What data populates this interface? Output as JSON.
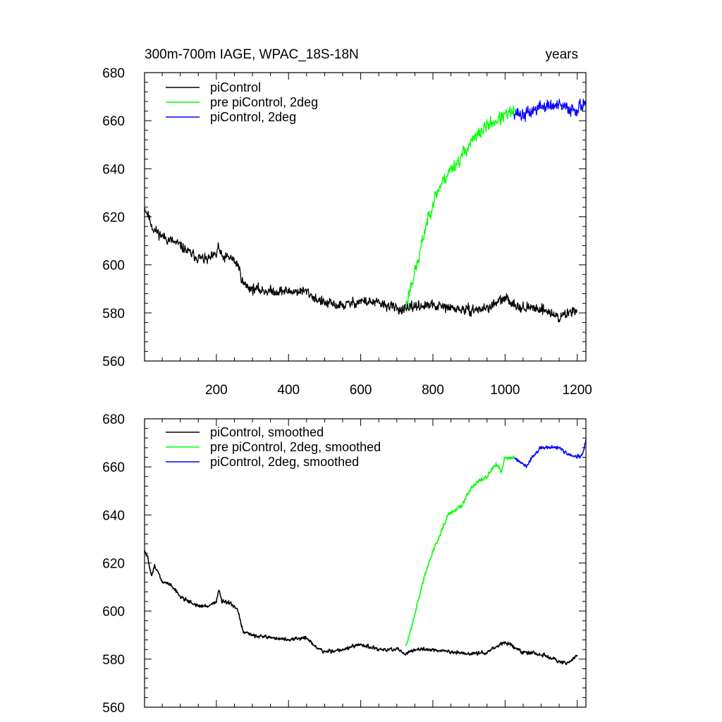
{
  "colors": {
    "picontrol": "#000000",
    "pre_picontrol_2deg": "#00ff00",
    "picontrol_2deg": "#0000ff",
    "axis": "#000000",
    "background": "#ffffff"
  },
  "chart_data": [
    {
      "type": "line",
      "title": "300m-700m IAGE, WPAC_18S-18N",
      "right_title": "years",
      "xlabel": "",
      "ylabel": "",
      "xlim": [
        1,
        1224
      ],
      "ylim": [
        560,
        680
      ],
      "x_ticks": [
        200,
        400,
        600,
        800,
        1000,
        1200
      ],
      "x_tick_labels": [
        "200",
        "400",
        "600",
        "800",
        "1000",
        "1200"
      ],
      "y_ticks": [
        560,
        580,
        600,
        620,
        640,
        660,
        680
      ],
      "y_tick_labels": [
        "560",
        "580",
        "600",
        "620",
        "640",
        "660",
        "680"
      ],
      "legend_position": "top-left",
      "series": [
        {
          "name": "piControl",
          "color": "#000000",
          "noise": 4.5,
          "seed": 11,
          "points": [
            [
              1,
              624
            ],
            [
              10,
              621
            ],
            [
              25,
              615
            ],
            [
              50,
              612
            ],
            [
              75,
              610
            ],
            [
              100,
              608
            ],
            [
              125,
              605
            ],
            [
              150,
              603
            ],
            [
              175,
              602
            ],
            [
              200,
              604
            ],
            [
              205,
              608
            ],
            [
              215,
              603
            ],
            [
              240,
              603
            ],
            [
              260,
              600
            ],
            [
              275,
              592
            ],
            [
              300,
              590
            ],
            [
              350,
              589
            ],
            [
              400,
              589
            ],
            [
              450,
              589
            ],
            [
              475,
              586
            ],
            [
              500,
              584
            ],
            [
              550,
              583
            ],
            [
              600,
              585
            ],
            [
              650,
              584
            ],
            [
              700,
              582
            ],
            [
              725,
              581
            ],
            [
              750,
              583
            ],
            [
              800,
              583
            ],
            [
              850,
              582
            ],
            [
              900,
              581
            ],
            [
              950,
              582
            ],
            [
              1000,
              586
            ],
            [
              1050,
              582
            ],
            [
              1100,
              582
            ],
            [
              1150,
              578
            ],
            [
              1200,
              582
            ]
          ]
        },
        {
          "name": "pre piControl, 2deg",
          "color": "#00ff00",
          "noise": 6,
          "seed": 23,
          "points": [
            [
              725,
              583
            ],
            [
              740,
              592
            ],
            [
              760,
              602
            ],
            [
              780,
              616
            ],
            [
              800,
              626
            ],
            [
              820,
              633
            ],
            [
              850,
              640
            ],
            [
              875,
              644
            ],
            [
              900,
              650
            ],
            [
              925,
              654
            ],
            [
              950,
              658
            ],
            [
              975,
              660
            ],
            [
              1000,
              662
            ],
            [
              1025,
              664
            ]
          ]
        },
        {
          "name": "piControl, 2deg",
          "color": "#0000ff",
          "noise": 6,
          "seed": 37,
          "points": [
            [
              1025,
              664
            ],
            [
              1050,
              662
            ],
            [
              1075,
              664
            ],
            [
              1100,
              666
            ],
            [
              1125,
              666
            ],
            [
              1150,
              666
            ],
            [
              1175,
              665
            ],
            [
              1200,
              665
            ],
            [
              1224,
              668
            ]
          ]
        }
      ]
    },
    {
      "type": "line",
      "title": "",
      "xlabel": "",
      "ylabel": "",
      "xlim": [
        1,
        1224
      ],
      "ylim": [
        560,
        680
      ],
      "x_ticks": [
        200,
        400,
        600,
        800,
        1000,
        1200
      ],
      "y_ticks": [
        560,
        580,
        600,
        620,
        640,
        660,
        680
      ],
      "y_tick_labels": [
        "560",
        "580",
        "600",
        "620",
        "640",
        "660",
        "680"
      ],
      "legend_position": "top-left",
      "series": [
        {
          "name": "piControl, smoothed",
          "color": "#000000",
          "noise": 1.6,
          "seed": 51,
          "points": [
            [
              1,
              625
            ],
            [
              10,
              622
            ],
            [
              20,
              615
            ],
            [
              30,
              619
            ],
            [
              50,
              612
            ],
            [
              75,
              611
            ],
            [
              100,
              606
            ],
            [
              125,
              604
            ],
            [
              150,
              602
            ],
            [
              175,
              602
            ],
            [
              200,
              604
            ],
            [
              207,
              609
            ],
            [
              215,
              604
            ],
            [
              240,
              603
            ],
            [
              260,
              600
            ],
            [
              275,
              591
            ],
            [
              300,
              590
            ],
            [
              350,
              589
            ],
            [
              400,
              588
            ],
            [
              450,
              589
            ],
            [
              475,
              585
            ],
            [
              500,
              583
            ],
            [
              550,
              584
            ],
            [
              575,
              585
            ],
            [
              600,
              586
            ],
            [
              650,
              584
            ],
            [
              700,
              584
            ],
            [
              725,
              582
            ],
            [
              750,
              584
            ],
            [
              800,
              584
            ],
            [
              850,
              583
            ],
            [
              900,
              582
            ],
            [
              950,
              583
            ],
            [
              1000,
              587
            ],
            [
              1050,
              583
            ],
            [
              1100,
              582
            ],
            [
              1150,
              579
            ],
            [
              1175,
              578
            ],
            [
              1200,
              582
            ]
          ]
        },
        {
          "name": "pre piControl, 2deg, smoothed",
          "color": "#00ff00",
          "noise": 1.8,
          "seed": 63,
          "points": [
            [
              725,
              585
            ],
            [
              740,
              593
            ],
            [
              760,
              605
            ],
            [
              780,
              616
            ],
            [
              800,
              625
            ],
            [
              820,
              632
            ],
            [
              840,
              640
            ],
            [
              860,
              642
            ],
            [
              880,
              644
            ],
            [
              900,
              650
            ],
            [
              925,
              654
            ],
            [
              950,
              656
            ],
            [
              975,
              661
            ],
            [
              990,
              658
            ],
            [
              1000,
              664
            ],
            [
              1025,
              664
            ]
          ]
        },
        {
          "name": "piControl, 2deg, smoothed",
          "color": "#0000ff",
          "noise": 1.6,
          "seed": 77,
          "points": [
            [
              1025,
              664
            ],
            [
              1040,
              662
            ],
            [
              1060,
              660
            ],
            [
              1075,
              664
            ],
            [
              1100,
              668
            ],
            [
              1125,
              668
            ],
            [
              1150,
              668
            ],
            [
              1175,
              665
            ],
            [
              1200,
              664
            ],
            [
              1215,
              665
            ],
            [
              1224,
              671
            ]
          ]
        }
      ]
    }
  ]
}
